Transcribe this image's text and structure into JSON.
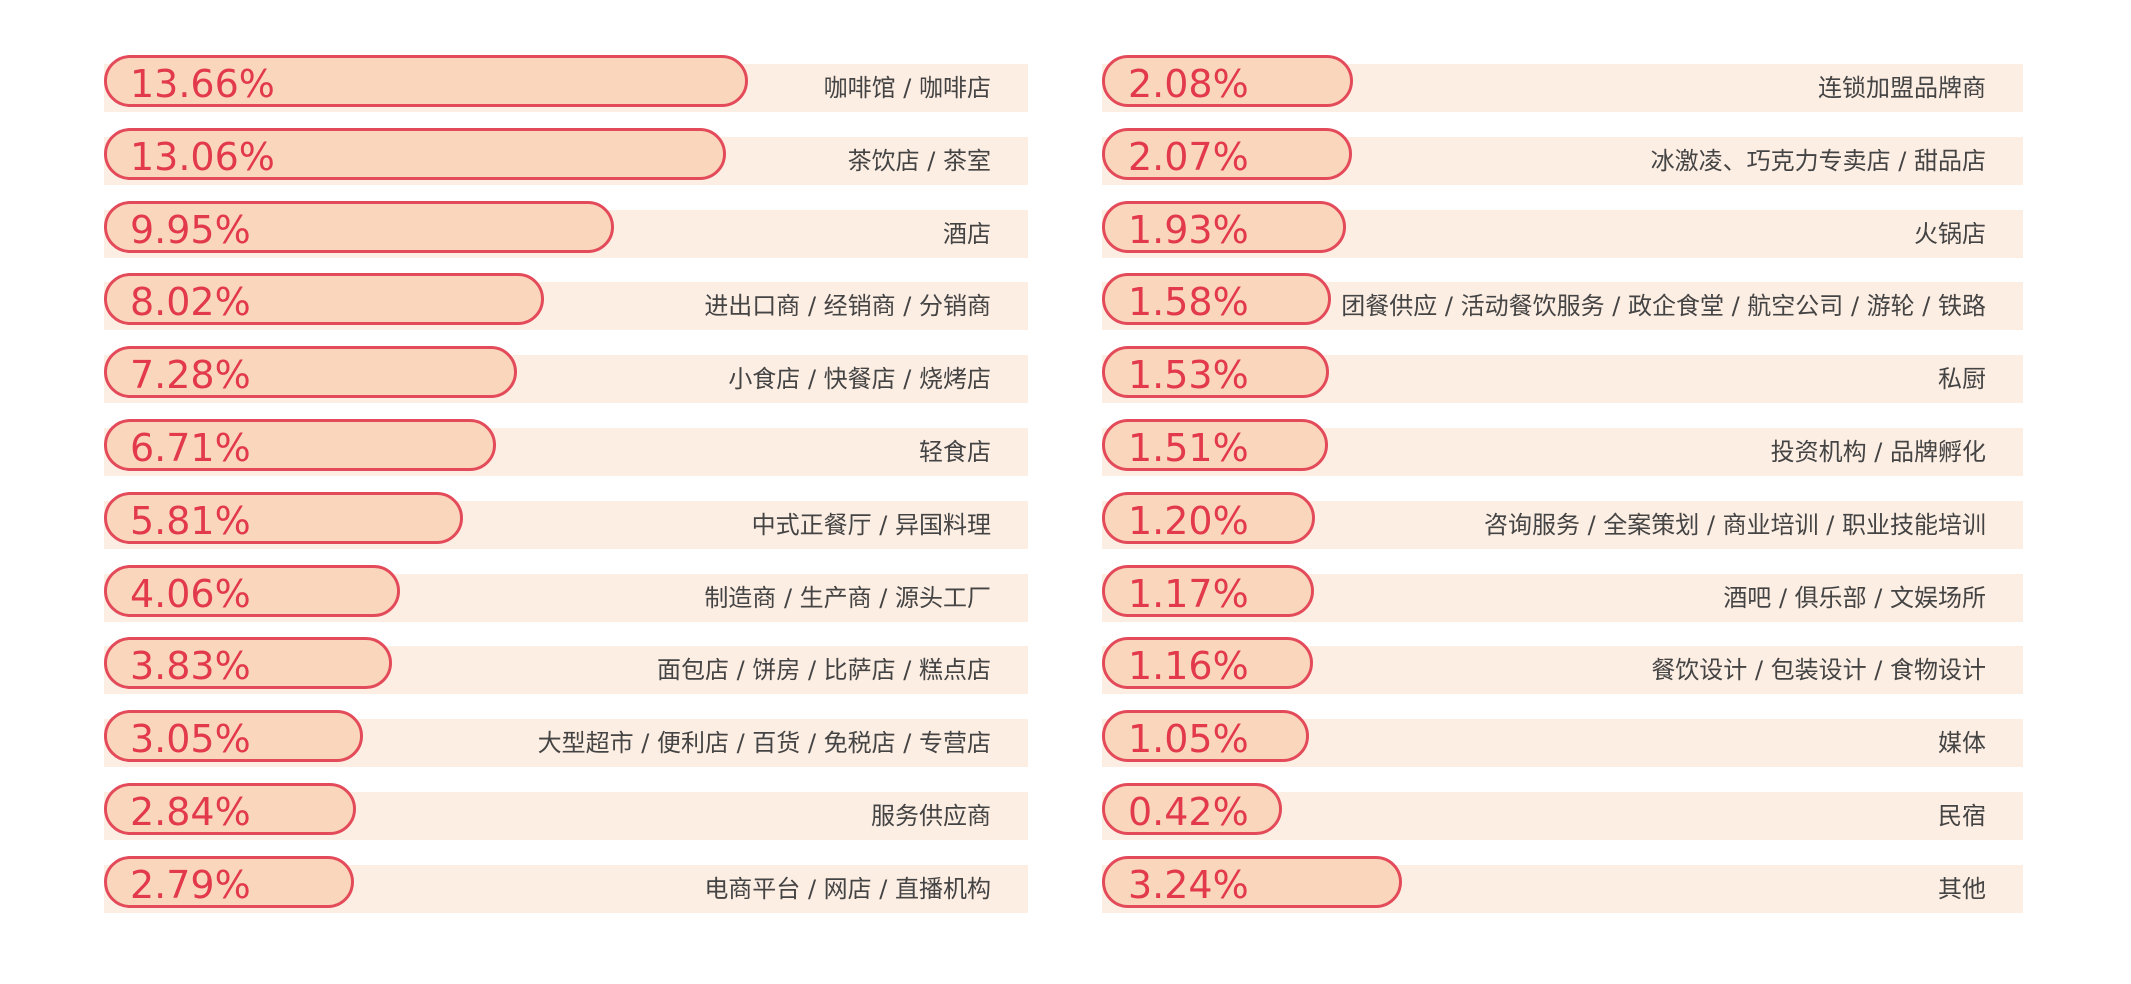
{
  "colors": {
    "bar_fill": "#fad7bc",
    "bar_border": "#e34b5a",
    "row_background": "#fdeee4",
    "value_text": "#e2394b",
    "category_text": "#444444"
  },
  "chart_data": [
    {
      "type": "bar",
      "orientation": "horizontal",
      "unit": "%",
      "title": "",
      "xlabel": "",
      "ylabel": "",
      "grid": false,
      "categories": [
        "咖啡馆 / 咖啡店",
        "茶饮店 / 茶室",
        "酒店",
        "进出口商 / 经销商 / 分销商",
        "小食店 / 快餐店 / 烧烤店",
        "轻食店",
        "中式正餐厅 / 异国料理",
        "制造商 / 生产商 / 源头工厂",
        "面包店 / 饼房 / 比萨店 / 糕点店",
        "大型超市 / 便利店 / 百货 / 免税店 / 专营店",
        "服务供应商",
        "电商平台 / 网店 / 直播机构"
      ],
      "values": [
        13.66,
        13.06,
        9.95,
        8.02,
        7.28,
        6.71,
        5.81,
        4.06,
        3.83,
        3.05,
        2.84,
        2.79
      ],
      "value_labels": [
        "13.66%",
        "13.06%",
        "9.95%",
        "8.02%",
        "7.28%",
        "6.71%",
        "5.81%",
        "4.06%",
        "3.83%",
        "3.05%",
        "2.84%",
        "2.79%"
      ]
    },
    {
      "type": "bar",
      "orientation": "horizontal",
      "unit": "%",
      "title": "",
      "xlabel": "",
      "ylabel": "",
      "grid": false,
      "categories": [
        "连锁加盟品牌商",
        "冰激凌、巧克力专卖店 / 甜品店",
        "火锅店",
        "团餐供应 / 活动餐饮服务 / 政企食堂 / 航空公司 / 游轮 / 铁路",
        "私厨",
        "投资机构 / 品牌孵化",
        "咨询服务 / 全案策划 / 商业培训 / 职业技能培训",
        "酒吧 / 俱乐部 / 文娱场所",
        "餐饮设计 / 包装设计 / 食物设计",
        "媒体",
        "民宿",
        "其他"
      ],
      "values": [
        2.08,
        2.07,
        1.93,
        1.58,
        1.53,
        1.51,
        1.2,
        1.17,
        1.16,
        1.05,
        0.42,
        3.24
      ],
      "value_labels": [
        "2.08%",
        "2.07%",
        "1.93%",
        "1.58%",
        "1.53%",
        "1.51%",
        "1.20%",
        "1.17%",
        "1.16%",
        "1.05%",
        "0.42%",
        "3.24%"
      ]
    }
  ]
}
